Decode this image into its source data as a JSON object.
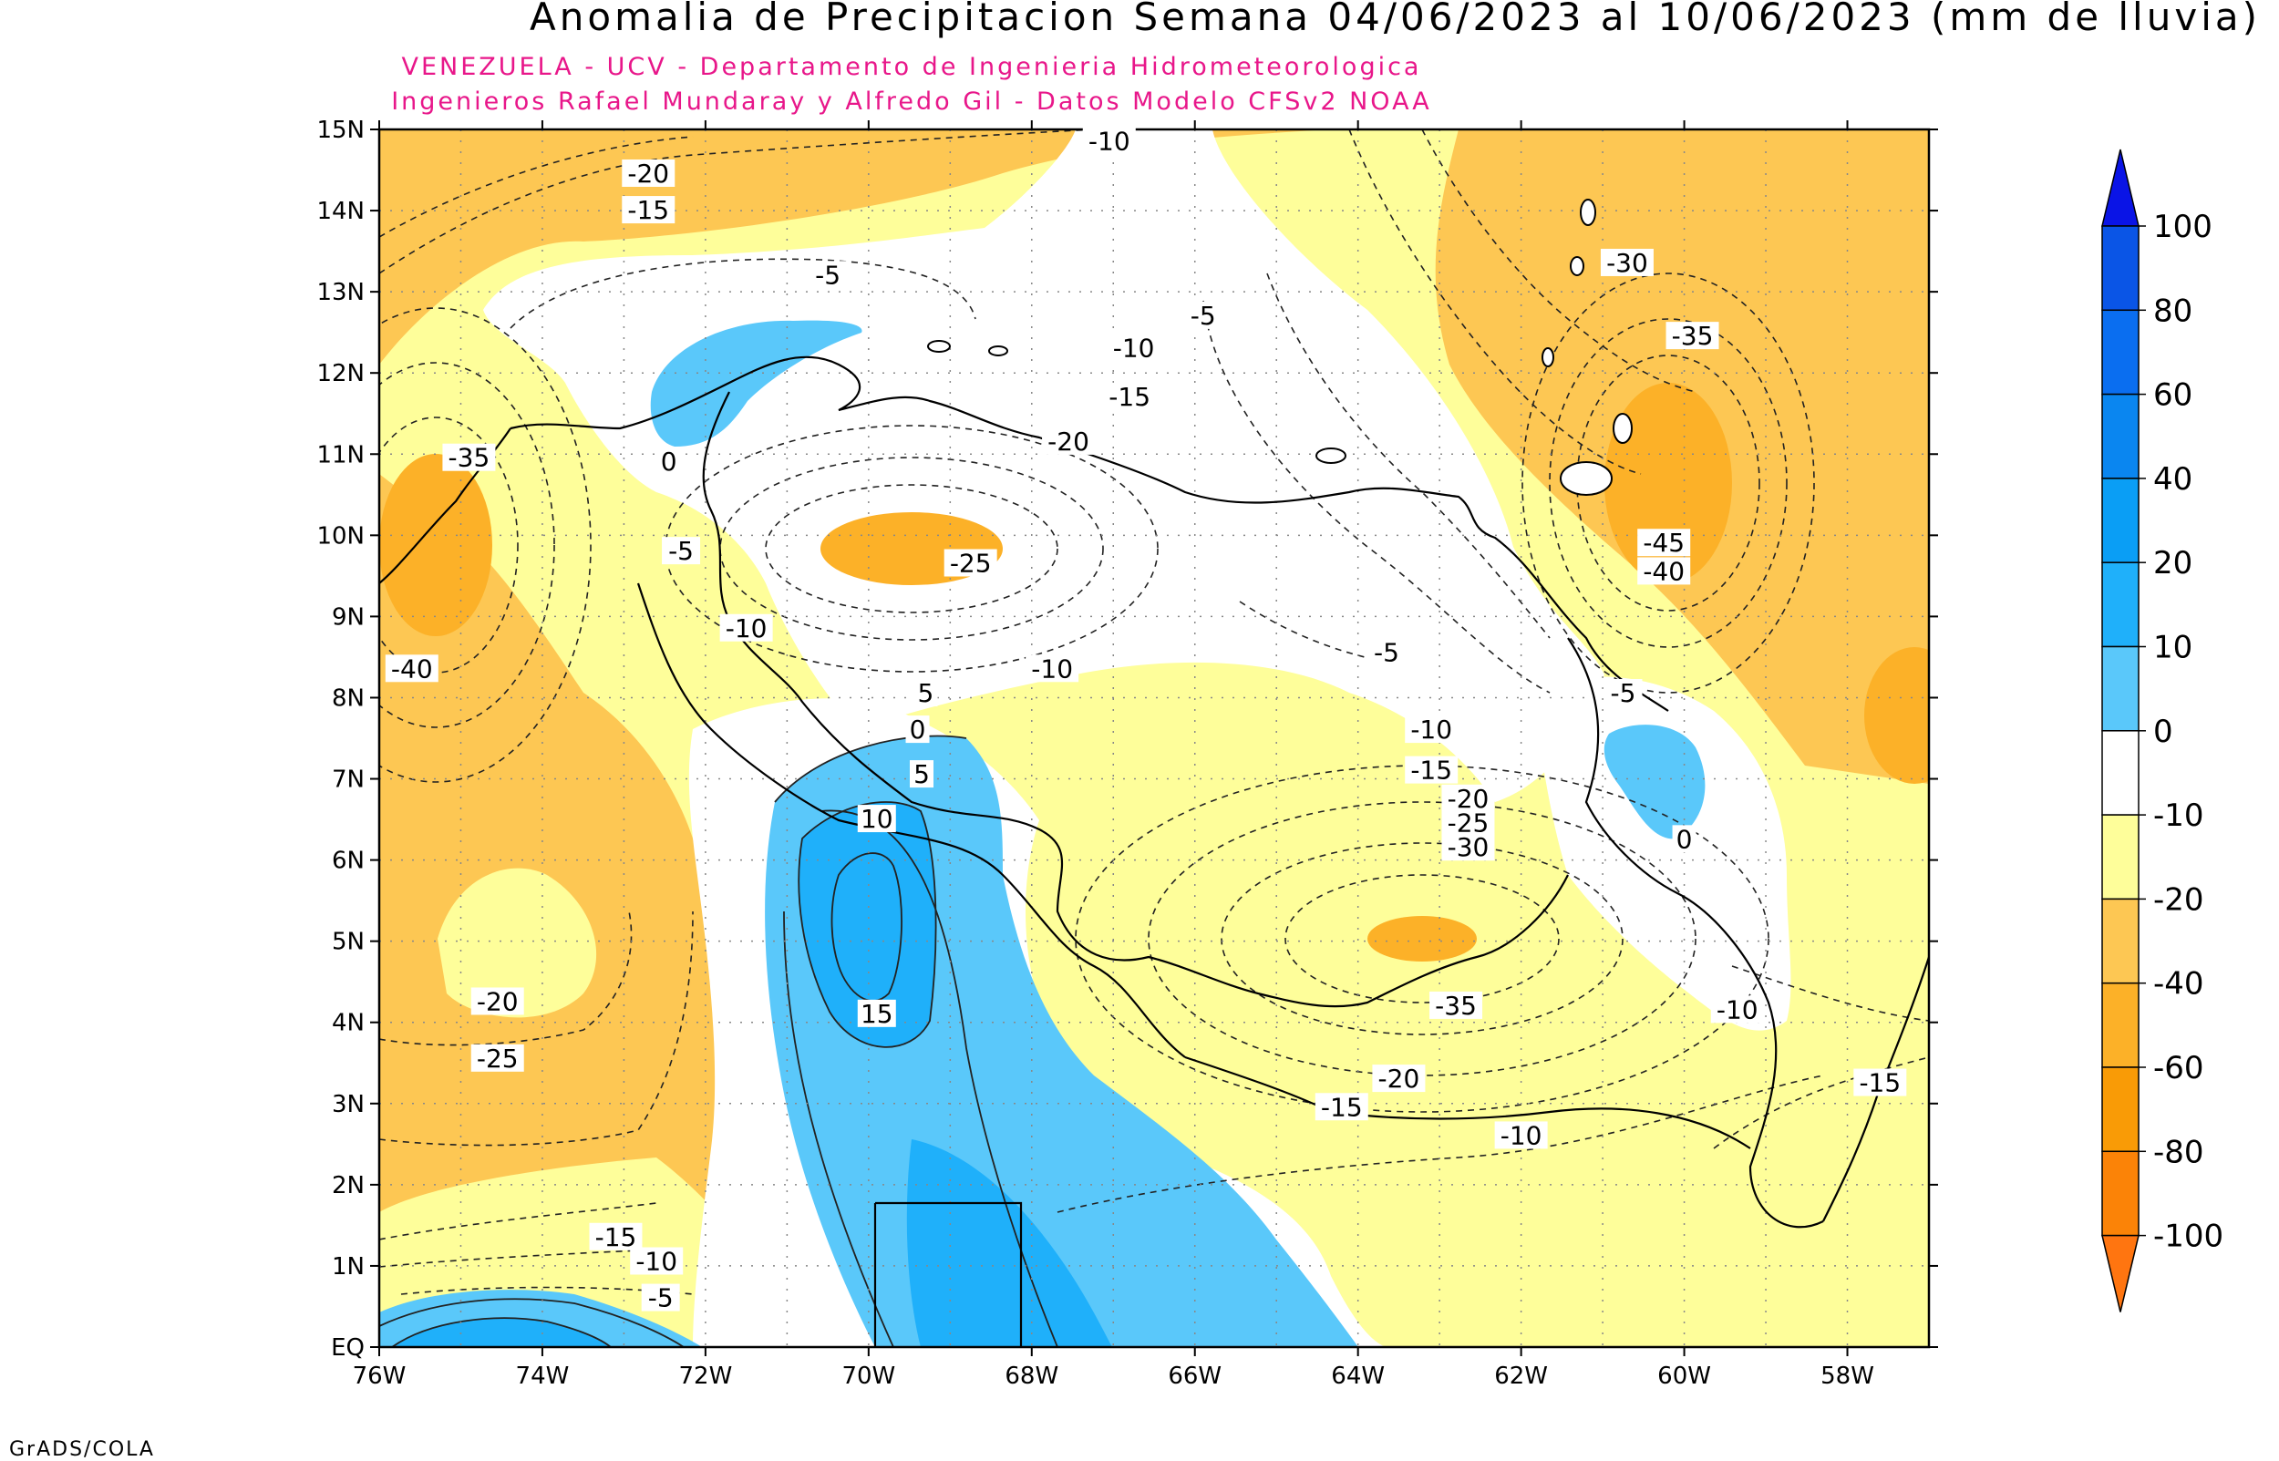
{
  "title": "Anomalia de Precipitacion Semana 04/06/2023 al 10/06/2023 (mm de lluvia)",
  "subtitle_1": "VENEZUELA - UCV - Departamento de Ingenieria Hidrometeorologica",
  "subtitle_2": "Ingenieros Rafael Mundaray y Alfredo Gil - Datos Modelo CFSv2 NOAA",
  "footer": "GrADS/COLA",
  "map": {
    "lat_labels": [
      "15N",
      "14N",
      "13N",
      "12N",
      "11N",
      "10N",
      "9N",
      "8N",
      "7N",
      "6N",
      "5N",
      "4N",
      "3N",
      "2N",
      "1N",
      "EQ"
    ],
    "lon_labels": [
      "76W",
      "74W",
      "72W",
      "70W",
      "68W",
      "66W",
      "64W",
      "62W",
      "60W",
      "58W"
    ],
    "contour_labels": [
      {
        "text": "-20",
        "lon": -72.7,
        "lat": 14.45
      },
      {
        "text": "-15",
        "lon": -72.7,
        "lat": 14.0
      },
      {
        "text": "-10",
        "lon": -67.05,
        "lat": 14.85
      },
      {
        "text": "-5",
        "lon": -70.5,
        "lat": 13.2
      },
      {
        "text": "-5",
        "lon": -65.9,
        "lat": 12.7
      },
      {
        "text": "-10",
        "lon": -66.75,
        "lat": 12.3
      },
      {
        "text": "-15",
        "lon": -66.8,
        "lat": 11.7
      },
      {
        "text": "-20",
        "lon": -67.55,
        "lat": 11.15
      },
      {
        "text": "-30",
        "lon": -60.7,
        "lat": 13.35
      },
      {
        "text": "-35",
        "lon": -59.9,
        "lat": 12.45
      },
      {
        "text": "-35",
        "lon": -74.9,
        "lat": 10.95
      },
      {
        "text": "0",
        "lon": -72.45,
        "lat": 10.9
      },
      {
        "text": "-5",
        "lon": -72.3,
        "lat": 9.8
      },
      {
        "text": "-25",
        "lon": -68.75,
        "lat": 9.65
      },
      {
        "text": "-10",
        "lon": -71.5,
        "lat": 8.85
      },
      {
        "text": "-45",
        "lon": -60.25,
        "lat": 9.9
      },
      {
        "text": "-40",
        "lon": -60.25,
        "lat": 9.55
      },
      {
        "text": "-40",
        "lon": -75.6,
        "lat": 8.35
      },
      {
        "text": "-5",
        "lon": -63.65,
        "lat": 8.55
      },
      {
        "text": "-10",
        "lon": -67.75,
        "lat": 8.35
      },
      {
        "text": "5",
        "lon": -69.3,
        "lat": 8.05
      },
      {
        "text": "-5",
        "lon": -60.75,
        "lat": 8.05
      },
      {
        "text": "0",
        "lon": -69.4,
        "lat": 7.6
      },
      {
        "text": "-10",
        "lon": -63.1,
        "lat": 7.6
      },
      {
        "text": "5",
        "lon": -69.35,
        "lat": 7.05
      },
      {
        "text": "-15",
        "lon": -63.1,
        "lat": 7.1
      },
      {
        "text": "-20",
        "lon": -62.65,
        "lat": 6.75
      },
      {
        "text": "-25",
        "lon": -62.65,
        "lat": 6.45
      },
      {
        "text": "-30",
        "lon": -62.65,
        "lat": 6.15
      },
      {
        "text": "10",
        "lon": -69.9,
        "lat": 6.5
      },
      {
        "text": "0",
        "lon": -60.0,
        "lat": 6.25
      },
      {
        "text": "15",
        "lon": -69.9,
        "lat": 4.1
      },
      {
        "text": "-20",
        "lon": -74.55,
        "lat": 4.25
      },
      {
        "text": "-25",
        "lon": -74.55,
        "lat": 3.55
      },
      {
        "text": "-35",
        "lon": -62.8,
        "lat": 4.2
      },
      {
        "text": "-10",
        "lon": -59.35,
        "lat": 4.15
      },
      {
        "text": "-20",
        "lon": -63.5,
        "lat": 3.3
      },
      {
        "text": "-15",
        "lon": -64.2,
        "lat": 2.95
      },
      {
        "text": "-15",
        "lon": -57.6,
        "lat": 3.25
      },
      {
        "text": "-10",
        "lon": -62.0,
        "lat": 2.6
      },
      {
        "text": "-15",
        "lon": -73.1,
        "lat": 1.35
      },
      {
        "text": "-10",
        "lon": -72.6,
        "lat": 1.05
      },
      {
        "text": "-5",
        "lon": -72.55,
        "lat": 0.6
      }
    ]
  },
  "colorbar": {
    "labels": [
      "100",
      "80",
      "60",
      "40",
      "20",
      "10",
      "0",
      "-10",
      "-20",
      "-40",
      "-60",
      "-80",
      "-100"
    ],
    "colors": [
      "#0a14e6",
      "#0a55e6",
      "#0a6ef0",
      "#0a86f0",
      "#0a9ef5",
      "#1fb0fa",
      "#5ac8fa",
      "#ffffff",
      "#fefe9a",
      "#fdc753",
      "#fcb128",
      "#f99b06",
      "#fb8307",
      "#ff7510"
    ]
  }
}
